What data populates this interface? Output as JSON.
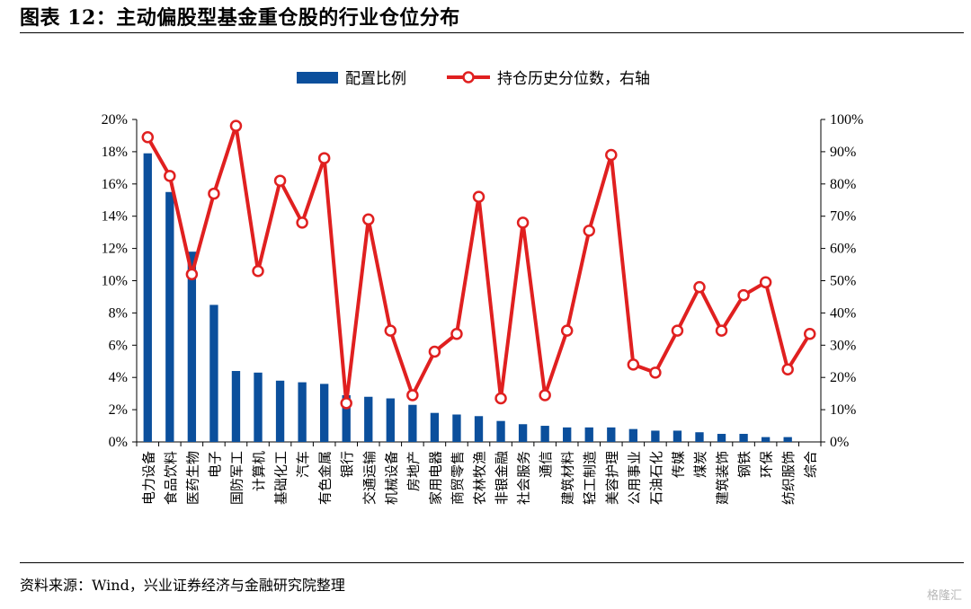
{
  "header": {
    "title": "图表 12：主动偏股型基金重仓股的行业仓位分布"
  },
  "footer": {
    "source": "资料来源：Wind，兴业证券经济与金融研究院整理",
    "watermark": "格隆汇"
  },
  "colors": {
    "bar": "#0b4f9c",
    "line": "#e02020",
    "marker_fill": "#ffffff"
  },
  "chart_data": {
    "type": "bar",
    "categories": [
      "电力设备",
      "食品饮料",
      "医药生物",
      "电子",
      "国防军工",
      "计算机",
      "基础化工",
      "汽车",
      "有色金属",
      "银行",
      "交通运输",
      "机械设备",
      "房地产",
      "家用电器",
      "商贸零售",
      "农林牧渔",
      "非银金融",
      "社会服务",
      "通信",
      "建筑材料",
      "轻工制造",
      "美容护理",
      "公用事业",
      "石油石化",
      "传媒",
      "煤炭",
      "建筑装饰",
      "钢铁",
      "环保",
      "纺织服饰",
      "综合"
    ],
    "series": [
      {
        "name": "配置比例",
        "type": "bar",
        "axis": "left",
        "values": [
          17.9,
          15.5,
          11.8,
          8.5,
          4.4,
          4.3,
          3.8,
          3.7,
          3.6,
          2.9,
          2.8,
          2.7,
          2.3,
          1.8,
          1.7,
          1.6,
          1.3,
          1.1,
          1.0,
          0.9,
          0.9,
          0.9,
          0.8,
          0.7,
          0.7,
          0.6,
          0.5,
          0.5,
          0.3,
          0.3,
          0.0
        ]
      },
      {
        "name": "持仓历史分位数，右轴",
        "type": "line",
        "axis": "right",
        "values": [
          94.5,
          82.5,
          52,
          77,
          98,
          53,
          81,
          68,
          88,
          12,
          69,
          34.5,
          14.5,
          28,
          33.5,
          76,
          13.5,
          68,
          14.5,
          34.5,
          65.5,
          89,
          24,
          21.5,
          34.5,
          48,
          34.5,
          45.5,
          49.5,
          22.5,
          33.5
        ]
      }
    ],
    "y_left": {
      "min": 0,
      "max": 20,
      "step": 2,
      "tick_labels": [
        "0%",
        "2%",
        "4%",
        "6%",
        "8%",
        "10%",
        "12%",
        "14%",
        "16%",
        "18%",
        "20%"
      ]
    },
    "y_right": {
      "min": 0,
      "max": 100,
      "step": 10,
      "tick_labels": [
        "0%",
        "10%",
        "20%",
        "30%",
        "40%",
        "50%",
        "60%",
        "70%",
        "80%",
        "90%",
        "100%"
      ]
    },
    "legend": {
      "position": "top-center",
      "bar_label": "配置比例",
      "line_label": "持仓历史分位数，右轴"
    },
    "grid": false
  }
}
